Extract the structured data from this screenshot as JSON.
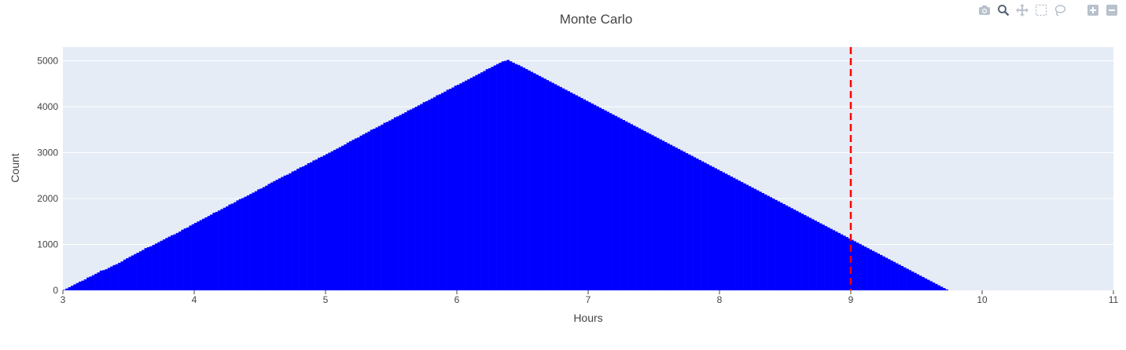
{
  "colors": {
    "bars": "#0000ff",
    "plot_bg": "#e5ecf6",
    "gridline": "#ffffff",
    "vline": "#ff0000",
    "text": "#444444",
    "title": "#444444",
    "modebar_icon": "#b8c1cc",
    "modebar_active": "#5a6677"
  },
  "modebar": {
    "buttons": [
      "camera-icon",
      "zoom-icon",
      "pan-icon",
      "box-select-icon",
      "lasso-select-icon",
      "zoom-in-icon",
      "zoom-out-icon"
    ],
    "active": "zoom-icon"
  },
  "chart_data": {
    "type": "bar",
    "title": "Monte Carlo",
    "xlabel": "Hours",
    "ylabel": "Count",
    "xlim": [
      3,
      11
    ],
    "ylim": [
      0,
      5300
    ],
    "x_ticks": [
      3,
      4,
      5,
      6,
      7,
      8,
      9,
      10,
      11
    ],
    "x_tick_labels": [
      "3",
      "4",
      "5",
      "6",
      "7",
      "8",
      "9",
      "10",
      "11"
    ],
    "y_ticks": [
      0,
      1000,
      2000,
      3000,
      4000,
      5000
    ],
    "y_tick_labels": [
      "0",
      "1000",
      "2000",
      "3000",
      "4000",
      "5000"
    ],
    "grid": true,
    "bin_start": 3,
    "bin_width": 0.02,
    "vertical_line": {
      "x": 9,
      "style": "dash"
    },
    "values": [
      10,
      40,
      70,
      100,
      130,
      160,
      190,
      210,
      240,
      280,
      300,
      330,
      360,
      390,
      430,
      440,
      460,
      490,
      520,
      550,
      570,
      600,
      630,
      670,
      700,
      730,
      760,
      790,
      820,
      850,
      880,
      920,
      940,
      960,
      990,
      1020,
      1050,
      1080,
      1110,
      1140,
      1170,
      1200,
      1220,
      1250,
      1280,
      1320,
      1350,
      1370,
      1410,
      1440,
      1470,
      1500,
      1530,
      1560,
      1590,
      1620,
      1650,
      1690,
      1710,
      1740,
      1770,
      1800,
      1830,
      1870,
      1890,
      1920,
      1960,
      1990,
      2010,
      2040,
      2070,
      2100,
      2130,
      2160,
      2200,
      2220,
      2250,
      2280,
      2320,
      2350,
      2380,
      2410,
      2440,
      2470,
      2500,
      2520,
      2550,
      2590,
      2610,
      2650,
      2680,
      2700,
      2730,
      2770,
      2790,
      2830,
      2850,
      2890,
      2910,
      2940,
      2970,
      3000,
      3030,
      3060,
      3090,
      3120,
      3150,
      3180,
      3220,
      3250,
      3280,
      3310,
      3330,
      3370,
      3400,
      3430,
      3460,
      3500,
      3520,
      3550,
      3580,
      3610,
      3650,
      3670,
      3700,
      3730,
      3770,
      3790,
      3820,
      3850,
      3880,
      3920,
      3940,
      3970,
      4000,
      4030,
      4060,
      4100,
      4120,
      4150,
      4180,
      4210,
      4250,
      4270,
      4300,
      4330,
      4370,
      4390,
      4420,
      4460,
      4480,
      4510,
      4540,
      4570,
      4600,
      4630,
      4660,
      4690,
      4720,
      4750,
      4780,
      4820,
      4840,
      4870,
      4900,
      4930,
      4960,
      4990,
      5000,
      5020,
      4990,
      4960,
      4930,
      4910,
      4880,
      4850,
      4820,
      4790,
      4760,
      4730,
      4700,
      4670,
      4640,
      4610,
      4580,
      4550,
      4520,
      4490,
      4460,
      4430,
      4400,
      4370,
      4340,
      4310,
      4280,
      4250,
      4220,
      4190,
      4160,
      4130,
      4100,
      4070,
      4040,
      4010,
      3980,
      3950,
      3920,
      3890,
      3860,
      3830,
      3800,
      3770,
      3740,
      3710,
      3680,
      3650,
      3620,
      3590,
      3560,
      3530,
      3500,
      3470,
      3440,
      3410,
      3380,
      3350,
      3320,
      3290,
      3260,
      3230,
      3200,
      3170,
      3140,
      3110,
      3080,
      3050,
      3020,
      2990,
      2960,
      2930,
      2900,
      2870,
      2840,
      2810,
      2780,
      2750,
      2720,
      2690,
      2660,
      2630,
      2600,
      2570,
      2540,
      2510,
      2480,
      2450,
      2420,
      2390,
      2360,
      2330,
      2300,
      2270,
      2240,
      2210,
      2180,
      2150,
      2120,
      2090,
      2060,
      2030,
      2000,
      1970,
      1940,
      1910,
      1880,
      1850,
      1820,
      1790,
      1760,
      1730,
      1700,
      1670,
      1640,
      1610,
      1580,
      1550,
      1520,
      1490,
      1460,
      1430,
      1400,
      1370,
      1340,
      1310,
      1280,
      1250,
      1220,
      1190,
      1160,
      1130,
      1100,
      1070,
      1040,
      1010,
      980,
      950,
      920,
      890,
      860,
      830,
      800,
      770,
      740,
      710,
      680,
      650,
      620,
      590,
      560,
      530,
      500,
      470,
      440,
      410,
      380,
      350,
      320,
      290,
      260,
      230,
      200,
      170,
      140,
      110,
      80,
      50,
      20
    ]
  }
}
